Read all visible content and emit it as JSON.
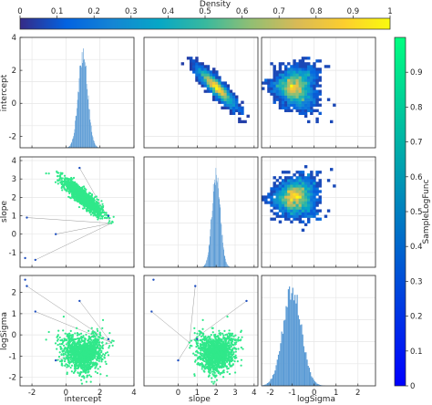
{
  "chart_data": {
    "type": "scatter-matrix",
    "variables": [
      "intercept",
      "slope",
      "logSigma"
    ],
    "ranges": {
      "intercept": [
        -2.7,
        4
      ],
      "slope": [
        -1.8,
        4.2
      ],
      "logSigma": [
        -2.4,
        2.8
      ]
    },
    "ticks": {
      "intercept": [
        -2,
        0,
        2,
        4
      ],
      "slope": [
        -1,
        0,
        1,
        2,
        3,
        4
      ],
      "logSigma": [
        -2,
        -1,
        0,
        1,
        2
      ]
    },
    "ticks_x": {
      "intercept": [
        -2,
        0,
        2,
        4
      ],
      "slope": [
        0,
        1,
        2,
        3,
        4
      ],
      "logSigma": [
        -2,
        -1,
        0,
        1,
        2
      ]
    },
    "marginals": {
      "intercept": {
        "mean": 1.0,
        "sd": 0.28
      },
      "slope": {
        "mean": 2.0,
        "sd": 0.22
      },
      "logSigma": {
        "mean": -1.0,
        "sd": 0.42
      }
    },
    "density_colorbar": {
      "title": "Density",
      "ticks": [
        0,
        0.1,
        0.2,
        0.3,
        0.4,
        0.5,
        0.6,
        0.7,
        0.8,
        0.9,
        1
      ],
      "colormap": "parula"
    },
    "sample_colorbar": {
      "title": "SampleLogFunc",
      "ticks": [
        0,
        0.1,
        0.2,
        0.3,
        0.4,
        0.5,
        0.6,
        0.7,
        0.8,
        0.9
      ],
      "colormap": "winter"
    },
    "grid": true,
    "upper_panels": "density",
    "lower_panels": "scatter",
    "diagonal_panels": "histogram"
  },
  "colors": {
    "histogram": "#5b9bd5",
    "scatter": "#30e88a",
    "outlier_line": "#9a9a9a",
    "axis": "#262626",
    "grid": "#e6e6e6"
  }
}
